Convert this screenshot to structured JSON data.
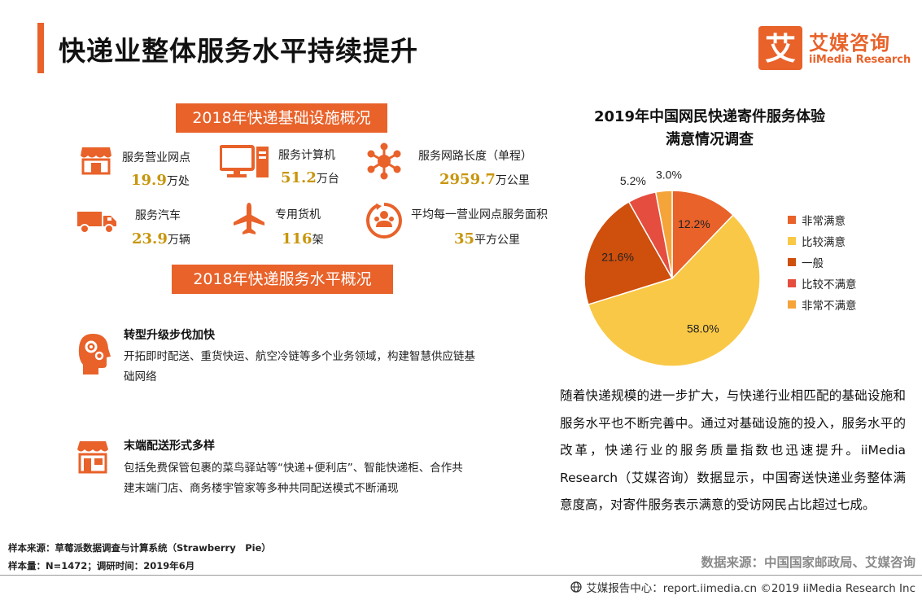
{
  "page": {
    "title": "快递业整体服务水平持续提升"
  },
  "logo": {
    "mark_char": "艾",
    "cn": "艾媒咨询",
    "en": "iiMedia Research"
  },
  "infrastructure": {
    "heading": "2018年快递基础设施概况",
    "items": [
      {
        "label": "服务营业网点",
        "value": "19.9",
        "unit": "万处",
        "icon": "storefront-icon"
      },
      {
        "label": "服务计算机",
        "value": "51.2",
        "unit": "万台",
        "icon": "computer-icon"
      },
      {
        "label": "服务网路长度（单程）",
        "value": "2959.7",
        "unit": "万公里",
        "icon": "network-icon"
      },
      {
        "label": "服务汽车",
        "value": "23.9",
        "unit": "万辆",
        "icon": "truck-icon"
      },
      {
        "label": "专用货机",
        "value": "116",
        "unit": "架",
        "icon": "airplane-icon"
      },
      {
        "label": "平均每一营业网点服务面积",
        "value": "35",
        "unit": "平方公里",
        "icon": "coverage-icon"
      }
    ]
  },
  "service": {
    "heading": "2018年快递服务水平概况",
    "items": [
      {
        "title": "转型升级步伐加快",
        "desc": "开拓即时配送、重货快运、航空冷链等多个业务领域，构建智慧供应链基础网络",
        "icon": "head-gears-icon"
      },
      {
        "title": "末端配送形式多样",
        "desc": "包括免费保管包裹的菜鸟驿站等“快递+便利店”、智能快递柜、合作共建末端门店、商务楼宇管家等多种共同配送模式不断涌现",
        "icon": "shop-icon"
      }
    ]
  },
  "notes": {
    "source": "样本来源：草莓派数据调查与计算系统（Strawberry　Pie）",
    "sample": "样本量：N=1472；调研时间：2019年6月"
  },
  "chart_data": {
    "type": "pie",
    "title_line1": "2019年中国网民快递寄件服务体验",
    "title_line2": "满意情况调查",
    "unit": "%",
    "slices": [
      {
        "name": "非常满意",
        "value": 12.2,
        "label": "12.2%",
        "color": "#e8622a"
      },
      {
        "name": "比较满意",
        "value": 58.0,
        "label": "58.0%",
        "color": "#f9c846"
      },
      {
        "name": "一般",
        "value": 21.6,
        "label": "21.6%",
        "color": "#cf4f0c"
      },
      {
        "name": "比较不满意",
        "value": 5.2,
        "label": "5.2%",
        "color": "#e54d3f"
      },
      {
        "name": "非常不满意",
        "value": 3.0,
        "label": "3.0%",
        "color": "#f5a43a"
      }
    ],
    "legend_position": "right"
  },
  "paragraph": "随着快递规模的进一步扩大，与快递行业相匹配的基础设施和服务水平也不断完善中。通过对基础设施的投入，服务水平的改革，快递行业的服务质量指数也迅速提升。iiMedia Research（艾媒咨询）数据显示，中国寄送快递业务整体满意度高，对寄件服务表示满意的受访网民占比超过七成。",
  "source_right": "数据来源：中国国家邮政局、艾媒咨询",
  "footer": "艾媒报告中心：report.iimedia.cn  ©2019  iiMedia Research  Inc",
  "colors": {
    "accent": "#e8622a",
    "value_gold": "#c8960c"
  }
}
